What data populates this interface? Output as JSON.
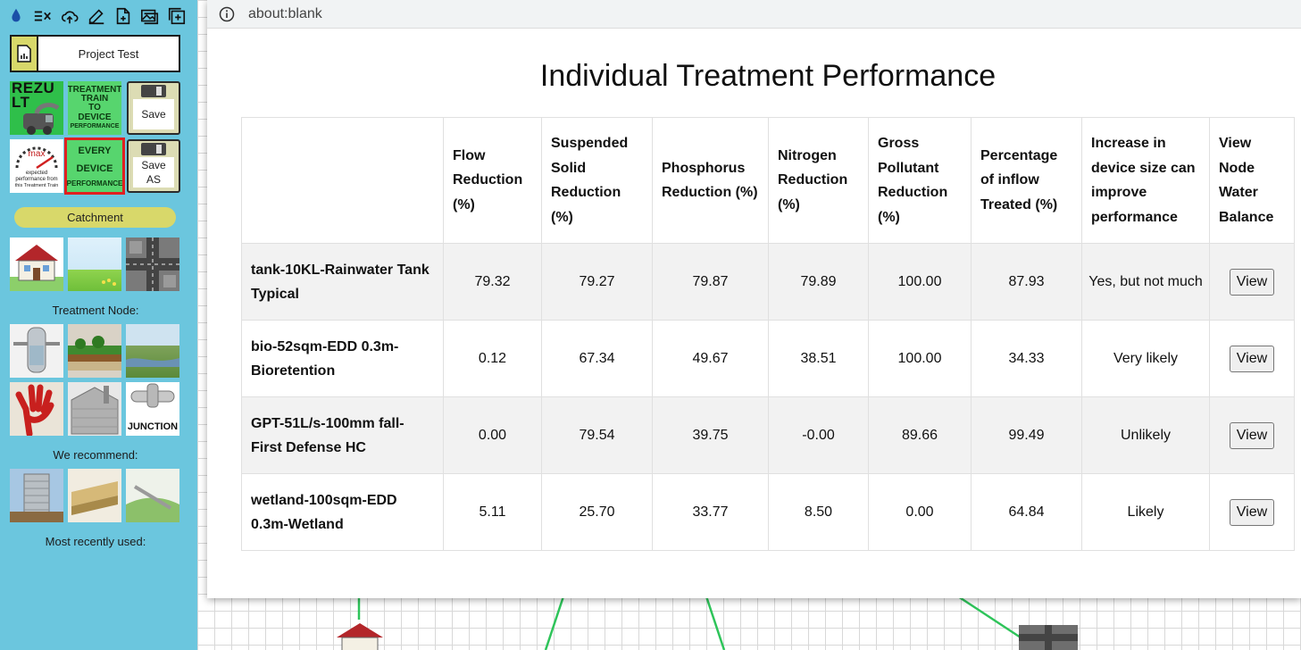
{
  "sidebar": {
    "toolbar_icons": [
      "water-drop-icon",
      "list-clear-icon",
      "cloud-upload-icon",
      "edit-icon",
      "new-file-icon",
      "image-icon",
      "add-window-icon"
    ],
    "project_name": "Project Test",
    "tiles": {
      "rezult": "REZU LT",
      "train_perf": [
        "TREATMENT",
        "TRAIN",
        "TO",
        "DEVICE",
        "PERFORMANCE"
      ],
      "save": "Save",
      "gauge_max": "max",
      "gauge_text": [
        "expected",
        "performance from",
        "this Treatment Train"
      ],
      "every_device": [
        "EVERY",
        "DEVICE",
        "PERFORMANCE"
      ],
      "save_as": "Save AS",
      "junction": "JUNCTION"
    },
    "catchment_label": "Catchment",
    "treatment_node_label": "Treatment Node:",
    "recommend_label": "We recommend:",
    "recent_label": "Most recently used:"
  },
  "browser": {
    "url": "about:blank"
  },
  "page": {
    "title": "Individual Treatment Performance"
  },
  "table": {
    "headers": [
      "",
      "Flow Reduction (%)",
      "Suspended Solid Reduction (%)",
      "Phosphorus Reduction (%)",
      "Nitrogen Reduction (%)",
      "Gross Pollutant Reduction (%)",
      "Percentage of inflow Treated (%)",
      "Increase in device size can improve performance",
      "View Node Water Balance"
    ],
    "rows": [
      {
        "name": "tank-10KL-Rainwater Tank Typical",
        "flow": "79.32",
        "ss": "79.27",
        "p": "79.87",
        "n": "79.89",
        "gp": "100.00",
        "treated": "87.93",
        "increase": "Yes, but not much",
        "view": "View"
      },
      {
        "name": "bio-52sqm-EDD 0.3m-Bioretention",
        "flow": "0.12",
        "ss": "67.34",
        "p": "49.67",
        "n": "38.51",
        "gp": "100.00",
        "treated": "34.33",
        "increase": "Very likely",
        "view": "View"
      },
      {
        "name": "GPT-51L/s-100mm fall-First Defense HC",
        "flow": "0.00",
        "ss": "79.54",
        "p": "39.75",
        "n": "-0.00",
        "gp": "89.66",
        "treated": "99.49",
        "increase": "Unlikely",
        "view": "View"
      },
      {
        "name": "wetland-100sqm-EDD 0.3m-Wetland",
        "flow": "5.11",
        "ss": "25.70",
        "p": "33.77",
        "n": "8.50",
        "gp": "0.00",
        "treated": "64.84",
        "increase": "Likely",
        "view": "View"
      }
    ]
  },
  "colors": {
    "sidebar_bg": "#6bc6de",
    "pill": "#d8d86a",
    "tile_green": "#57d56e",
    "selected_border": "#e02020",
    "link_line": "#2ec45a"
  }
}
